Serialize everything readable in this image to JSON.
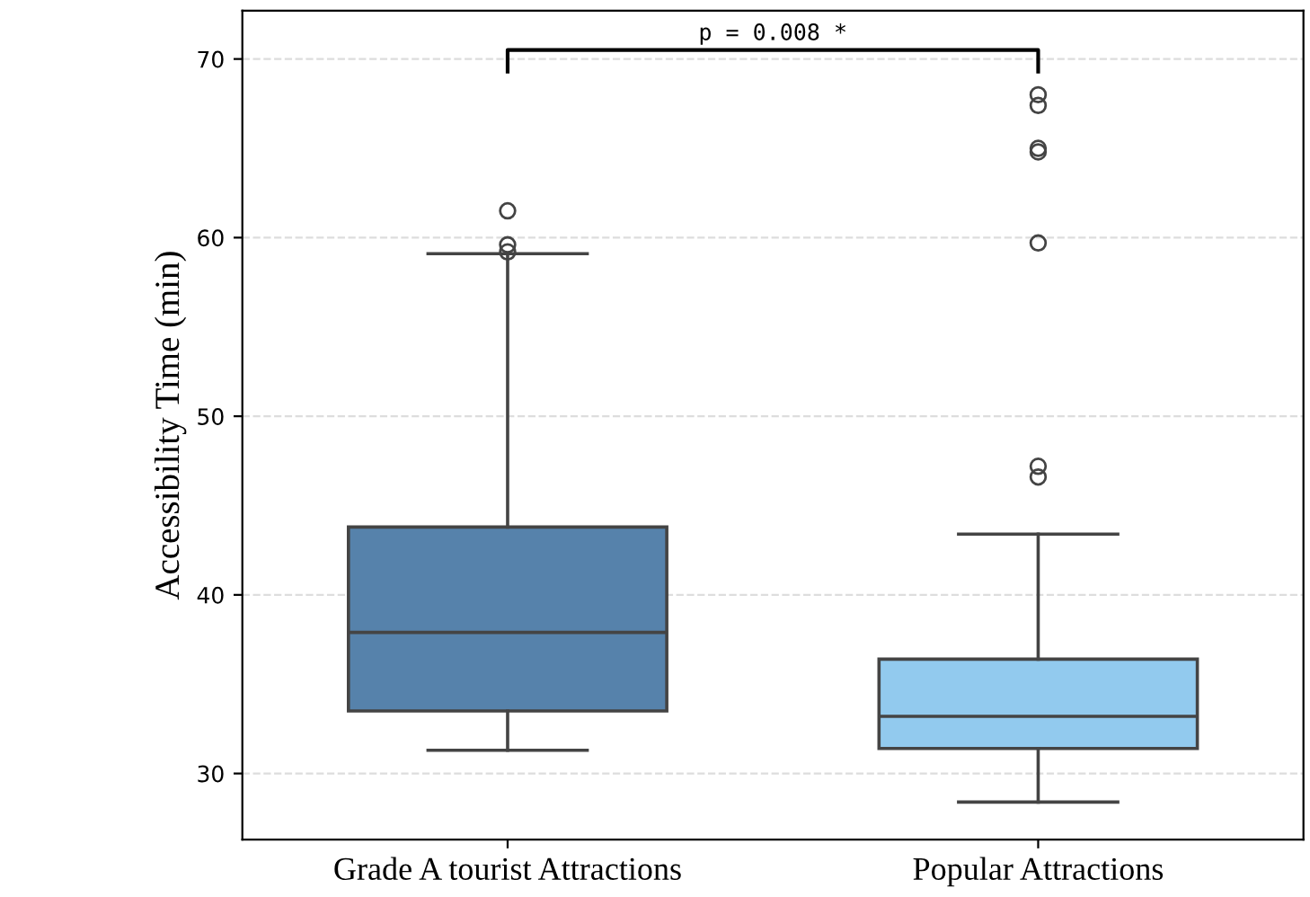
{
  "chart_data": {
    "type": "box",
    "ylabel": "Accessibility Time (min)",
    "categories": [
      "Grade A tourist Attractions",
      "Popular Attractions"
    ],
    "boxes": [
      {
        "low": 31.3,
        "q1": 33.5,
        "median": 37.9,
        "q3": 43.8,
        "high": 59.1,
        "outliers": [
          61.5,
          59.6,
          59.2
        ]
      },
      {
        "low": 28.4,
        "q1": 31.4,
        "median": 33.2,
        "q3": 36.4,
        "high": 43.4,
        "outliers": [
          68.0,
          67.4,
          65.0,
          64.8,
          59.7,
          47.2,
          46.6
        ]
      }
    ],
    "colors": [
      "#5682ab",
      "#92caee"
    ],
    "ylim": [
      26.3,
      72.7
    ],
    "yticks": [
      30,
      40,
      50,
      60,
      70
    ],
    "grid": "y",
    "annotations": [
      "p = 0.008 *"
    ]
  }
}
